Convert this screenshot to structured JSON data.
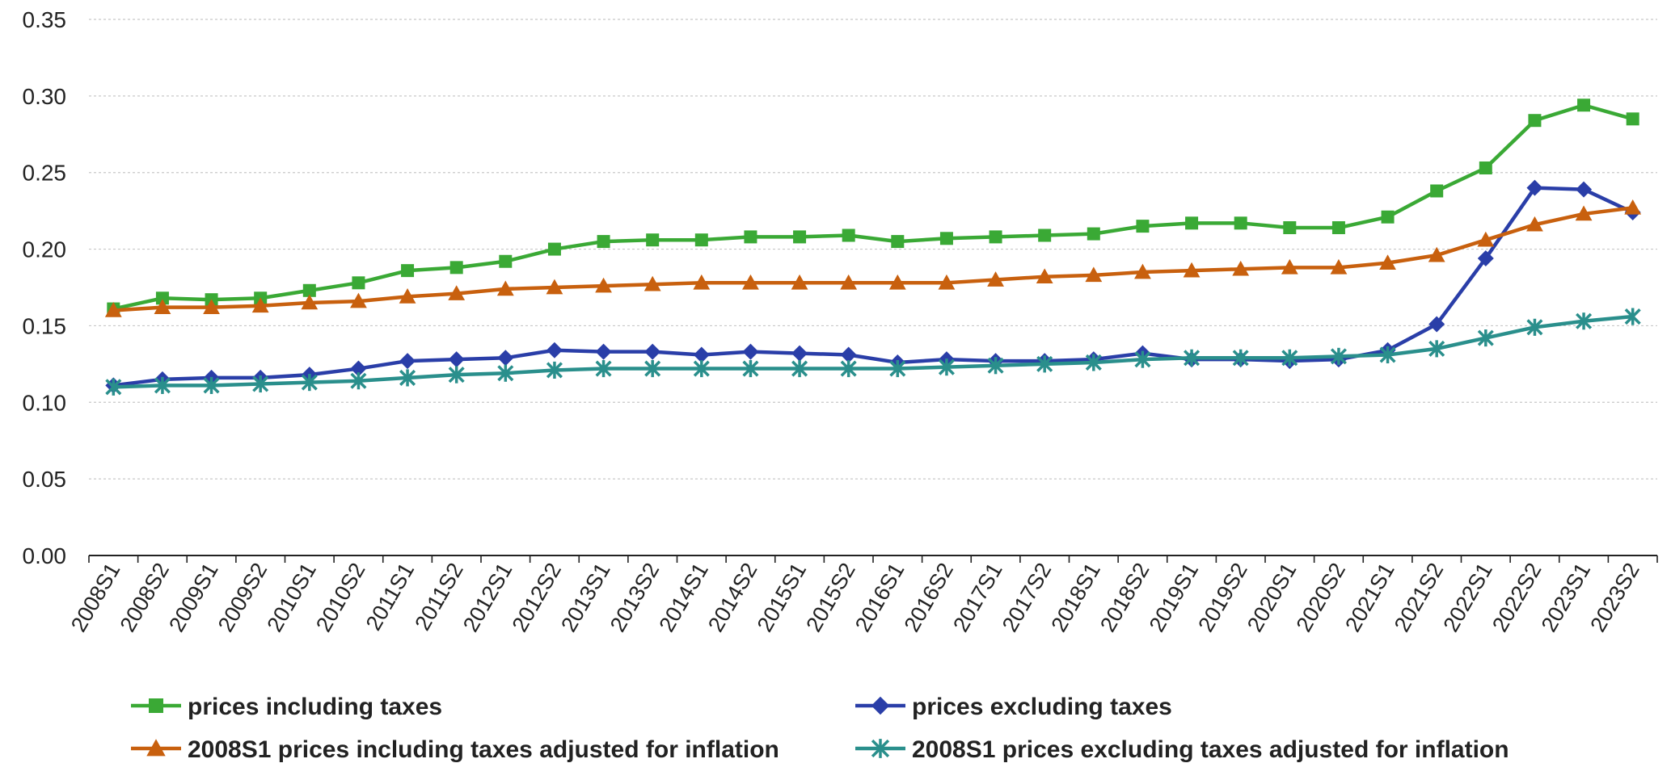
{
  "chart_data": {
    "type": "line",
    "title": "",
    "xlabel": "",
    "ylabel": "",
    "ylim": [
      0,
      0.35
    ],
    "yticks": [
      "0.00",
      "0.05",
      "0.10",
      "0.15",
      "0.20",
      "0.25",
      "0.30",
      "0.35"
    ],
    "grid": true,
    "legend_position": "bottom",
    "x": [
      "2008S1",
      "2008S2",
      "2009S1",
      "2009S2",
      "2010S1",
      "2010S2",
      "2011S1",
      "2011S2",
      "2012S1",
      "2012S2",
      "2013S1",
      "2013S2",
      "2014S1",
      "2014S2",
      "2015S1",
      "2015S2",
      "2016S1",
      "2016S2",
      "2017S1",
      "2017S2",
      "2018S1",
      "2018S2",
      "2019S1",
      "2019S2",
      "2020S1",
      "2020S2",
      "2021S1",
      "2021S2",
      "2022S1",
      "2022S2",
      "2023S1",
      "2023S2"
    ],
    "series": [
      {
        "name": "prices including taxes",
        "color": "#3aa935",
        "marker": "square",
        "values": [
          0.161,
          0.168,
          0.167,
          0.168,
          0.173,
          0.178,
          0.186,
          0.188,
          0.192,
          0.2,
          0.205,
          0.206,
          0.206,
          0.208,
          0.208,
          0.209,
          0.205,
          0.207,
          0.208,
          0.209,
          0.21,
          0.215,
          0.217,
          0.217,
          0.214,
          0.214,
          0.221,
          0.238,
          0.253,
          0.284,
          0.294,
          0.285
        ]
      },
      {
        "name": "prices excluding taxes",
        "color": "#2a3ea8",
        "marker": "diamond",
        "values": [
          0.111,
          0.115,
          0.116,
          0.116,
          0.118,
          0.122,
          0.127,
          0.128,
          0.129,
          0.134,
          0.133,
          0.133,
          0.131,
          0.133,
          0.132,
          0.131,
          0.126,
          0.128,
          0.127,
          0.127,
          0.128,
          0.132,
          0.128,
          0.128,
          0.127,
          0.128,
          0.134,
          0.151,
          0.194,
          0.24,
          0.239,
          0.224
        ]
      },
      {
        "name": "2008S1 prices including taxes adjusted for inflation",
        "color": "#c8600e",
        "marker": "triangle",
        "values": [
          0.16,
          0.162,
          0.162,
          0.163,
          0.165,
          0.166,
          0.169,
          0.171,
          0.174,
          0.175,
          0.176,
          0.177,
          0.178,
          0.178,
          0.178,
          0.178,
          0.178,
          0.178,
          0.18,
          0.182,
          0.183,
          0.185,
          0.186,
          0.187,
          0.188,
          0.188,
          0.191,
          0.196,
          0.206,
          0.216,
          0.223,
          0.227
        ]
      },
      {
        "name": "2008S1 prices excluding taxes adjusted for inflation",
        "color": "#2a8f8c",
        "marker": "star",
        "values": [
          0.11,
          0.111,
          0.111,
          0.112,
          0.113,
          0.114,
          0.116,
          0.118,
          0.119,
          0.121,
          0.122,
          0.122,
          0.122,
          0.122,
          0.122,
          0.122,
          0.122,
          0.123,
          0.124,
          0.125,
          0.126,
          0.128,
          0.129,
          0.129,
          0.129,
          0.13,
          0.131,
          0.135,
          0.142,
          0.149,
          0.153,
          0.156
        ]
      }
    ]
  }
}
